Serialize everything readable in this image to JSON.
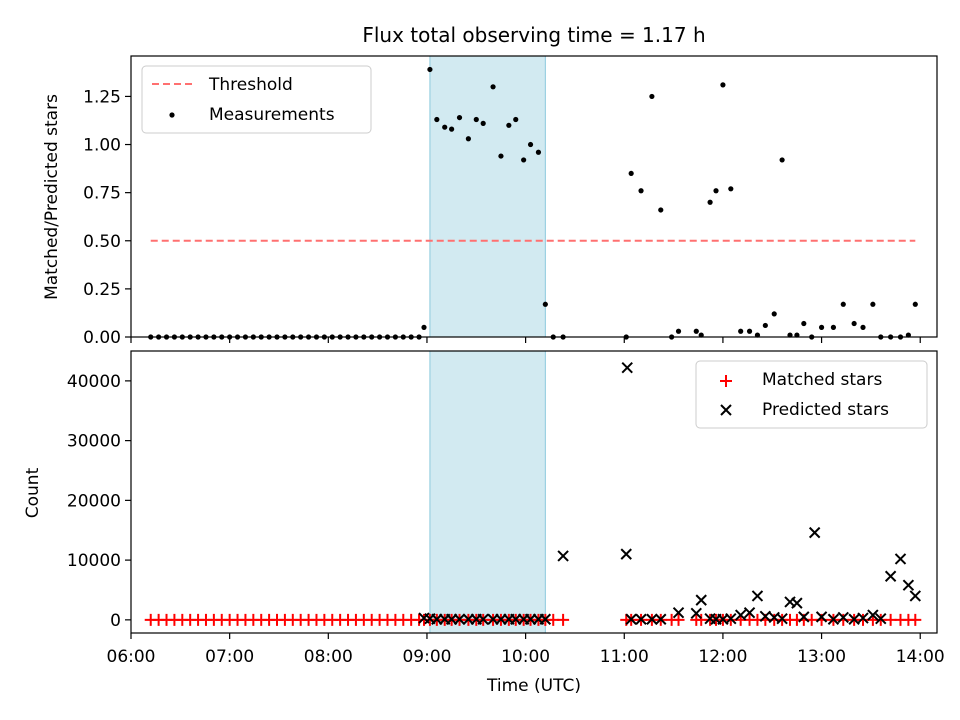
{
  "title": "Flux total observing time = 1.17 h",
  "shade_color": "#add8e6",
  "chart_data": [
    {
      "type": "scatter",
      "ylabel": "Matched/Predicted stars",
      "xlabel": "",
      "xlim": [
        6.0,
        14.17
      ],
      "ylim": [
        0,
        1.46
      ],
      "yticks": [
        0,
        0.25,
        0.5,
        0.75,
        1.0,
        1.25
      ],
      "ytick_labels": [
        "0.00",
        "0.25",
        "0.50",
        "0.75",
        "1.00",
        "1.25"
      ],
      "xticks": [
        6,
        7,
        8,
        9,
        10,
        11,
        12,
        13,
        14
      ],
      "shaded_span": [
        9.03,
        10.2
      ],
      "legend_position": "upper-left",
      "threshold": {
        "name": "Threshold",
        "x": [
          6.2,
          13.95
        ],
        "y": 0.5,
        "color": "#ff7070"
      },
      "measurements": {
        "name": "Measurements",
        "color": "#000000",
        "x": [
          6.2,
          6.28,
          6.36,
          6.44,
          6.52,
          6.6,
          6.68,
          6.76,
          6.84,
          6.92,
          7.0,
          7.08,
          7.16,
          7.24,
          7.32,
          7.4,
          7.48,
          7.56,
          7.64,
          7.72,
          7.8,
          7.88,
          7.96,
          8.04,
          8.12,
          8.2,
          8.28,
          8.36,
          8.44,
          8.52,
          8.6,
          8.68,
          8.76,
          8.84,
          8.92,
          8.97,
          9.03,
          9.1,
          9.18,
          9.25,
          9.33,
          9.42,
          9.5,
          9.57,
          9.67,
          9.75,
          9.83,
          9.9,
          9.98,
          10.05,
          10.13,
          10.2,
          10.28,
          10.38,
          11.02,
          11.07,
          11.17,
          11.28,
          11.37,
          11.48,
          11.55,
          11.73,
          11.78,
          11.87,
          11.93,
          12.0,
          12.08,
          12.18,
          12.27,
          12.35,
          12.43,
          12.52,
          12.6,
          12.68,
          12.75,
          12.82,
          12.9,
          13.0,
          13.12,
          13.22,
          13.33,
          13.42,
          13.52,
          13.6,
          13.7,
          13.8,
          13.88,
          13.95
        ],
        "y": [
          0,
          0,
          0,
          0,
          0,
          0,
          0,
          0,
          0,
          0,
          0,
          0,
          0,
          0,
          0,
          0,
          0,
          0,
          0,
          0,
          0,
          0,
          0,
          0,
          0,
          0,
          0,
          0,
          0,
          0,
          0,
          0,
          0,
          0,
          0,
          0.05,
          1.39,
          1.13,
          1.09,
          1.08,
          1.14,
          1.03,
          1.13,
          1.11,
          1.3,
          0.94,
          1.1,
          1.13,
          0.92,
          1.0,
          0.96,
          0.17,
          0,
          0,
          0,
          0.85,
          0.76,
          1.25,
          0.66,
          0,
          0.03,
          0.03,
          0.01,
          0.7,
          0.76,
          1.31,
          0.77,
          0.03,
          0.03,
          0.01,
          0.06,
          0.12,
          0.92,
          0.01,
          0.01,
          0.07,
          0,
          0.05,
          0.05,
          0.17,
          0.07,
          0.05,
          0.17,
          0,
          0,
          0,
          0.01,
          0.17
        ]
      }
    },
    {
      "type": "scatter",
      "ylabel": "Count",
      "xlabel": "Time (UTC)",
      "xlim": [
        6.0,
        14.17
      ],
      "ylim": [
        -2200,
        45000
      ],
      "yticks": [
        0,
        10000,
        20000,
        30000,
        40000
      ],
      "ytick_labels": [
        "0",
        "10000",
        "20000",
        "30000",
        "40000"
      ],
      "xticks": [
        6,
        7,
        8,
        9,
        10,
        11,
        12,
        13,
        14
      ],
      "xtick_labels": [
        "06:00",
        "07:00",
        "08:00",
        "09:00",
        "10:00",
        "11:00",
        "12:00",
        "13:00",
        "14:00"
      ],
      "shaded_span": [
        9.03,
        10.2
      ],
      "legend_position": "upper-right",
      "matched": {
        "name": "Matched stars",
        "color": "#ff0000",
        "x": [
          6.2,
          6.28,
          6.36,
          6.44,
          6.52,
          6.6,
          6.68,
          6.76,
          6.84,
          6.92,
          7.0,
          7.08,
          7.16,
          7.24,
          7.32,
          7.4,
          7.48,
          7.56,
          7.64,
          7.72,
          7.8,
          7.88,
          7.96,
          8.04,
          8.12,
          8.2,
          8.28,
          8.36,
          8.44,
          8.52,
          8.6,
          8.68,
          8.76,
          8.84,
          8.92,
          8.97,
          9.03,
          9.1,
          9.18,
          9.25,
          9.33,
          9.42,
          9.5,
          9.57,
          9.67,
          9.75,
          9.83,
          9.9,
          9.98,
          10.05,
          10.13,
          10.2,
          10.28,
          10.38,
          11.02,
          11.07,
          11.17,
          11.28,
          11.37,
          11.48,
          11.55,
          11.73,
          11.78,
          11.87,
          11.93,
          12.0,
          12.08,
          12.18,
          12.27,
          12.35,
          12.43,
          12.52,
          12.6,
          12.68,
          12.75,
          12.82,
          12.9,
          13.0,
          13.12,
          13.22,
          13.33,
          13.42,
          13.52,
          13.6,
          13.7,
          13.8,
          13.88,
          13.95
        ],
        "y": [
          0,
          0,
          0,
          0,
          0,
          0,
          0,
          0,
          0,
          0,
          0,
          0,
          0,
          0,
          0,
          0,
          0,
          0,
          0,
          0,
          0,
          0,
          0,
          0,
          0,
          0,
          0,
          0,
          0,
          0,
          0,
          0,
          0,
          0,
          0,
          0,
          0,
          0,
          0,
          0,
          0,
          0,
          0,
          0,
          0,
          0,
          0,
          0,
          0,
          0,
          0,
          0,
          0,
          0,
          0,
          0,
          0,
          0,
          0,
          0,
          0,
          0,
          0,
          0,
          0,
          0,
          0,
          0,
          0,
          0,
          0,
          0,
          0,
          0,
          0,
          0,
          0,
          0,
          0,
          0,
          0,
          0,
          0,
          0,
          0,
          0,
          0,
          0
        ]
      },
      "predicted": {
        "name": "Predicted stars",
        "color": "#000000",
        "x": [
          8.97,
          9.03,
          9.1,
          9.18,
          9.25,
          9.33,
          9.42,
          9.5,
          9.57,
          9.67,
          9.75,
          9.83,
          9.9,
          9.98,
          10.05,
          10.13,
          10.2,
          10.38,
          11.02,
          11.03,
          11.07,
          11.17,
          11.28,
          11.37,
          11.55,
          11.73,
          11.78,
          11.87,
          11.93,
          12.0,
          12.08,
          12.18,
          12.27,
          12.35,
          12.43,
          12.52,
          12.6,
          12.68,
          12.75,
          12.82,
          12.93,
          13.0,
          13.12,
          13.22,
          13.33,
          13.42,
          13.52,
          13.6,
          13.7,
          13.8,
          13.88,
          13.95
        ],
        "y": [
          300,
          200,
          100,
          100,
          100,
          100,
          100,
          100,
          100,
          100,
          100,
          100,
          100,
          100,
          100,
          100,
          100,
          10700,
          11000,
          42200,
          100,
          100,
          100,
          100,
          1200,
          1100,
          3300,
          200,
          100,
          100,
          200,
          800,
          1200,
          4000,
          600,
          400,
          200,
          3000,
          2800,
          500,
          14600,
          500,
          100,
          400,
          100,
          300,
          800,
          200,
          7300,
          10200,
          5800,
          4000
        ]
      }
    }
  ]
}
